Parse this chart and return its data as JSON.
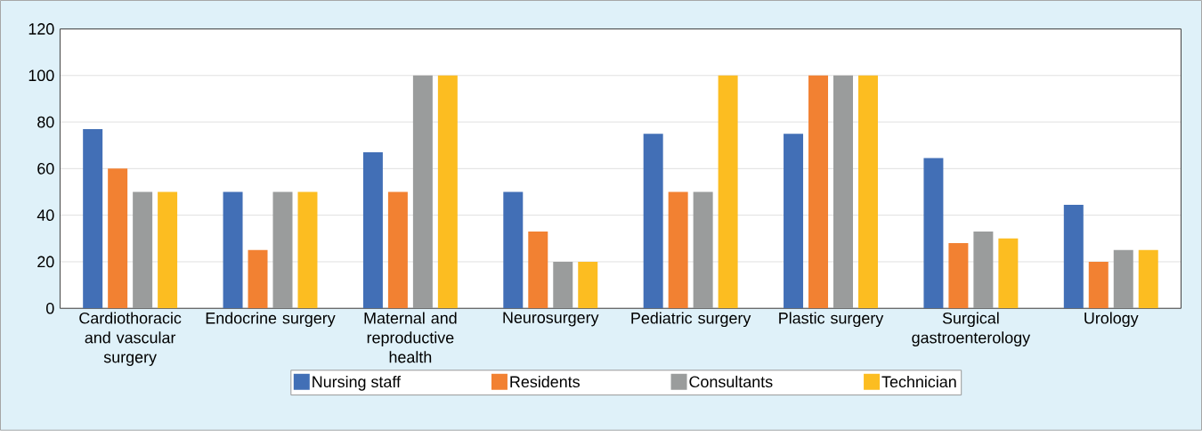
{
  "chart_data": {
    "type": "bar",
    "categories": [
      "Cardiothoracic and vascular surgery",
      "Endocrine surgery",
      "Maternal and reproductive health",
      "Neurosurgery",
      "Pediatric surgery",
      "Plastic surgery",
      "Surgical gastroenterology",
      "Urology"
    ],
    "series": [
      {
        "name": "Nursing staff",
        "color": "#426fb6",
        "values": [
          77,
          50,
          67,
          50,
          75,
          75,
          64.5,
          44.5
        ]
      },
      {
        "name": "Residents",
        "color": "#f28132",
        "values": [
          60,
          25,
          50,
          33,
          50,
          100,
          28,
          20
        ]
      },
      {
        "name": "Consultants",
        "color": "#9a9c9c",
        "values": [
          50,
          50,
          100,
          20,
          50,
          100,
          33,
          25
        ]
      },
      {
        "name": "Technician",
        "color": "#fcbd21",
        "values": [
          50,
          50,
          100,
          20,
          100,
          100,
          30,
          25
        ]
      }
    ],
    "ylim": [
      0,
      120
    ],
    "yticks": [
      0,
      20,
      40,
      60,
      80,
      100,
      120
    ],
    "grid": "y",
    "legend": "bottom"
  }
}
